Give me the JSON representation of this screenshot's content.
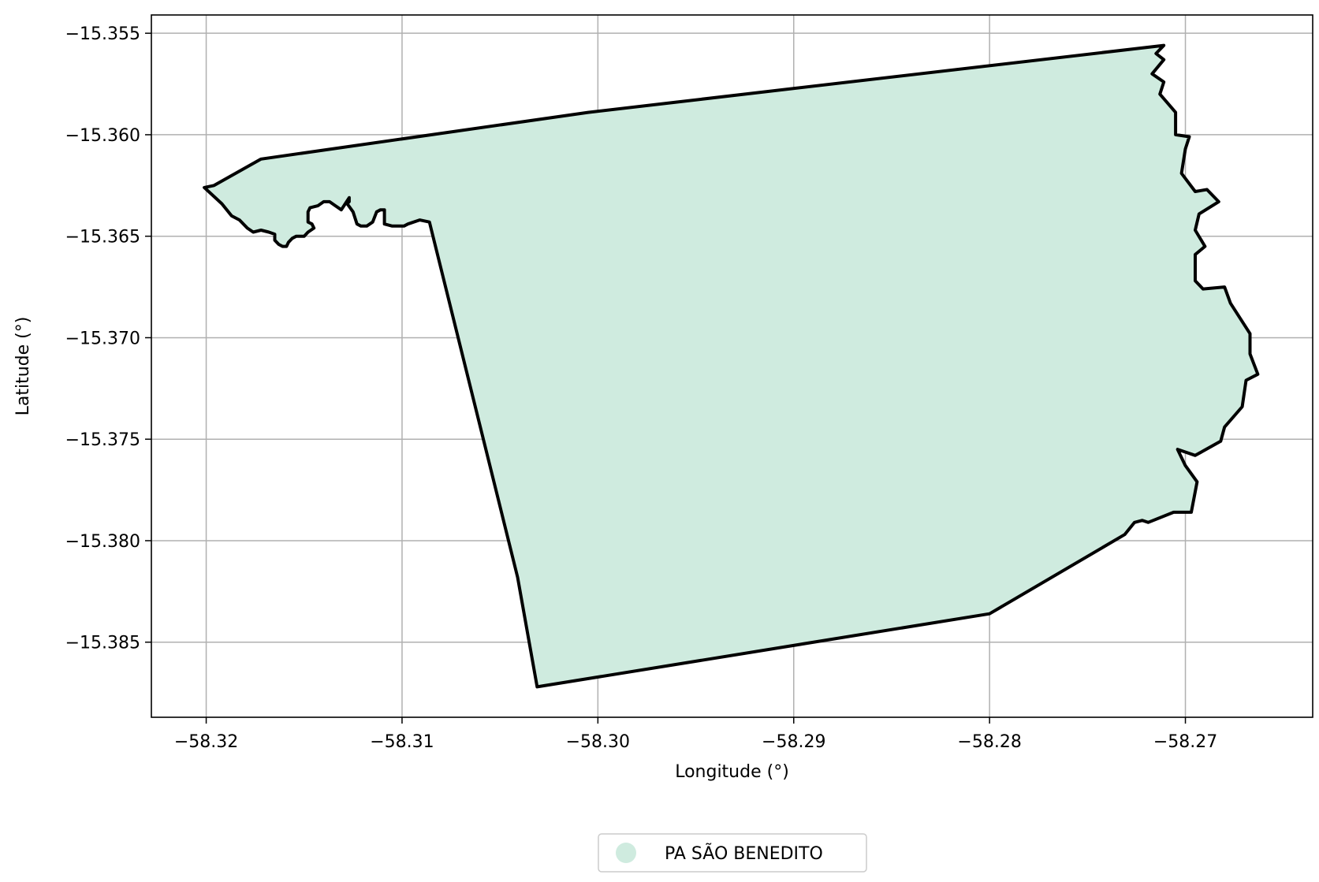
{
  "chart_data": {
    "type": "map",
    "title": "",
    "xlabel": "Longitude (°)",
    "ylabel": "Latitude (°)",
    "xlim": [
      -58.3228,
      -58.2635
    ],
    "ylim": [
      -15.3887,
      -15.3541
    ],
    "xticks": [
      -58.32,
      -58.31,
      -58.3,
      -58.29,
      -58.28,
      -58.27
    ],
    "xtick_labels": [
      "−58.32",
      "−58.31",
      "−58.30",
      "−58.29",
      "−58.28",
      "−58.27"
    ],
    "yticks": [
      -15.355,
      -15.36,
      -15.365,
      -15.37,
      -15.375,
      -15.38,
      -15.385
    ],
    "ytick_labels": [
      "−15.355",
      "−15.360",
      "−15.365",
      "−15.370",
      "−15.375",
      "−15.380",
      "−15.385"
    ],
    "grid": true,
    "legend_position": "bottom-center",
    "series": [
      {
        "name": "PA SÃO BENEDITO",
        "fill_color": "#cfebdf",
        "edge_color": "#000000",
        "boundary": [
          [
            -58.3201,
            -15.3626
          ],
          [
            -58.3196,
            -15.3625
          ],
          [
            -58.3172,
            -15.3612
          ],
          [
            -58.3005,
            -15.3589
          ],
          [
            -58.2711,
            -15.3556
          ],
          [
            -58.2715,
            -15.356
          ],
          [
            -58.2711,
            -15.3563
          ],
          [
            -58.2717,
            -15.357
          ],
          [
            -58.2711,
            -15.3574
          ],
          [
            -58.2713,
            -15.358
          ],
          [
            -58.2705,
            -15.3589
          ],
          [
            -58.2705,
            -15.36
          ],
          [
            -58.2698,
            -15.3601
          ],
          [
            -58.27,
            -15.3607
          ],
          [
            -58.2702,
            -15.3619
          ],
          [
            -58.2695,
            -15.3628
          ],
          [
            -58.2689,
            -15.3627
          ],
          [
            -58.2683,
            -15.3633
          ],
          [
            -58.2693,
            -15.3639
          ],
          [
            -58.2695,
            -15.3647
          ],
          [
            -58.269,
            -15.3655
          ],
          [
            -58.2695,
            -15.3659
          ],
          [
            -58.2695,
            -15.3672
          ],
          [
            -58.2691,
            -15.3676
          ],
          [
            -58.268,
            -15.3675
          ],
          [
            -58.2677,
            -15.3683
          ],
          [
            -58.2667,
            -15.3698
          ],
          [
            -58.2667,
            -15.3708
          ],
          [
            -58.2663,
            -15.3718
          ],
          [
            -58.2669,
            -15.3721
          ],
          [
            -58.2671,
            -15.3734
          ],
          [
            -58.268,
            -15.3744
          ],
          [
            -58.2682,
            -15.3751
          ],
          [
            -58.2695,
            -15.3758
          ],
          [
            -58.2704,
            -15.3755
          ],
          [
            -58.27,
            -15.3763
          ],
          [
            -58.2694,
            -15.3771
          ],
          [
            -58.2697,
            -15.3786
          ],
          [
            -58.2706,
            -15.3786
          ],
          [
            -58.2719,
            -15.3791
          ],
          [
            -58.2722,
            -15.379
          ],
          [
            -58.2726,
            -15.3791
          ],
          [
            -58.2731,
            -15.3797
          ],
          [
            -58.28,
            -15.3836
          ],
          [
            -58.3031,
            -15.3872
          ],
          [
            -58.3041,
            -15.3818
          ],
          [
            -58.3086,
            -15.3643
          ],
          [
            -58.3091,
            -15.3642
          ],
          [
            -58.3097,
            -15.3644
          ],
          [
            -58.3099,
            -15.3645
          ],
          [
            -58.3105,
            -15.3645
          ],
          [
            -58.3109,
            -15.3644
          ],
          [
            -58.3109,
            -15.3637
          ],
          [
            -58.3111,
            -15.3637
          ],
          [
            -58.3113,
            -15.3638
          ],
          [
            -58.3115,
            -15.3643
          ],
          [
            -58.3118,
            -15.3645
          ],
          [
            -58.3121,
            -15.3645
          ],
          [
            -58.3123,
            -15.3644
          ],
          [
            -58.3125,
            -15.3638
          ],
          [
            -58.3128,
            -15.3634
          ],
          [
            -58.3127,
            -15.3633
          ],
          [
            -58.3127,
            -15.3631
          ],
          [
            -58.3129,
            -15.3634
          ],
          [
            -58.3131,
            -15.3637
          ],
          [
            -58.3134,
            -15.3635
          ],
          [
            -58.3137,
            -15.3633
          ],
          [
            -58.314,
            -15.3633
          ],
          [
            -58.3143,
            -15.3635
          ],
          [
            -58.3147,
            -15.3636
          ],
          [
            -58.3148,
            -15.3638
          ],
          [
            -58.3148,
            -15.3643
          ],
          [
            -58.3146,
            -15.3644
          ],
          [
            -58.3145,
            -15.3646
          ],
          [
            -58.3148,
            -15.3648
          ],
          [
            -58.315,
            -15.365
          ],
          [
            -58.3154,
            -15.365
          ],
          [
            -58.3156,
            -15.3651
          ],
          [
            -58.3158,
            -15.3653
          ],
          [
            -58.3159,
            -15.3655
          ],
          [
            -58.3161,
            -15.3655
          ],
          [
            -58.3163,
            -15.3654
          ],
          [
            -58.3165,
            -15.3652
          ],
          [
            -58.3165,
            -15.3649
          ],
          [
            -58.3168,
            -15.3648
          ],
          [
            -58.3172,
            -15.3647
          ],
          [
            -58.3176,
            -15.3648
          ],
          [
            -58.3179,
            -15.3646
          ],
          [
            -58.3183,
            -15.3642
          ],
          [
            -58.3187,
            -15.364
          ],
          [
            -58.3192,
            -15.3634
          ],
          [
            -58.3201,
            -15.3626
          ]
        ]
      }
    ]
  }
}
